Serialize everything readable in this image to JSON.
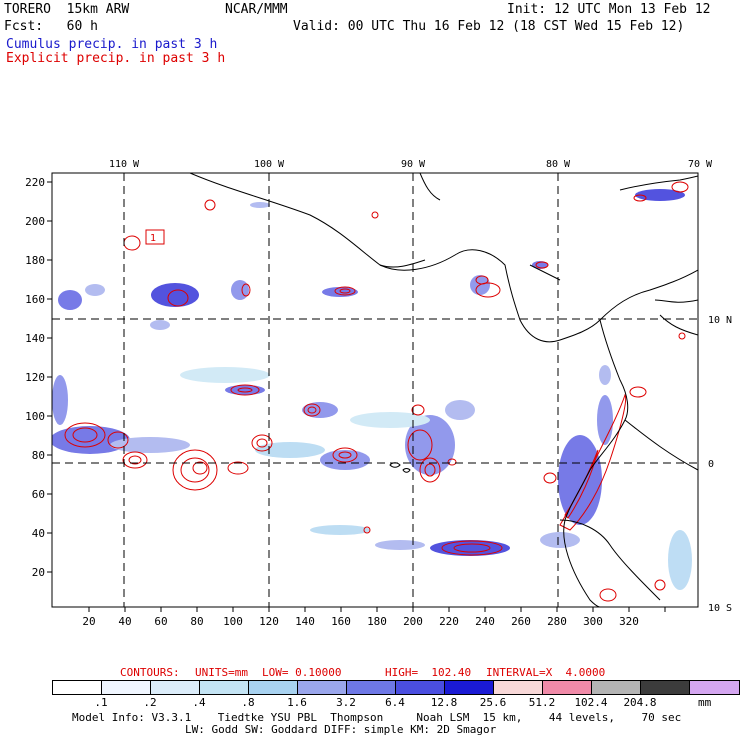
{
  "header": {
    "model": "TORERO  15km ARW",
    "center": "NCAR/MMM",
    "init": "Init: 12 UTC Mon 13 Feb 12",
    "fcst": "Fcst:   60 h",
    "valid": "Valid: 00 UTC Thu 16 Feb 12 (18 CST Wed 15 Feb 12)",
    "field1": "Cumulus precip. in past 3 h",
    "field2": "Explicit precip. in past 3 h",
    "field1_color": "#1a1acc",
    "field2_color": "#dd0000"
  },
  "map": {
    "lon_labels": [
      "110 W",
      "100 W",
      "90 W",
      "80 W",
      "70 W"
    ],
    "lat_labels": [
      "10 N",
      "0",
      "10 S"
    ],
    "x_ticks": [
      "20",
      "40",
      "60",
      "80",
      "100",
      "120",
      "140",
      "160",
      "180",
      "200",
      "220",
      "240",
      "260",
      "280",
      "300",
      "320"
    ],
    "y_ticks": [
      "20",
      "40",
      "60",
      "80",
      "100",
      "120",
      "140",
      "160",
      "180",
      "200",
      "220"
    ],
    "contour_label": "1"
  },
  "contours_info": {
    "label": "CONTOURS:",
    "units": "UNITS=mm",
    "low": "LOW= 0.10000",
    "high": "HIGH=  102.40",
    "interval": "INTERVAL=X  4.0000"
  },
  "colorbar": {
    "colors": [
      "#ffffff",
      "#f0f6ff",
      "#dcedfa",
      "#c4e4f4",
      "#a8d2f0",
      "#9aa6ec",
      "#6e78e6",
      "#4a4ee0",
      "#1a1ad4",
      "#f8d8d8",
      "#f08aa8",
      "#b4b4b4",
      "#3c3c3c",
      "#d4a6f0"
    ],
    "labels": [
      ".1",
      ".2",
      ".4",
      ".8",
      "1.6",
      "3.2",
      "6.4",
      "12.8",
      "25.6",
      "51.2",
      "102.4",
      "204.8"
    ],
    "unit": "mm"
  },
  "footer": {
    "line1": "Model Info: V3.3.1    Tiedtke YSU PBL  Thompson     Noah LSM  15 km,    44 levels,    70 sec",
    "line2": "LW: Godd SW: Goddard DIFF: simple KM: 2D Smagor"
  }
}
